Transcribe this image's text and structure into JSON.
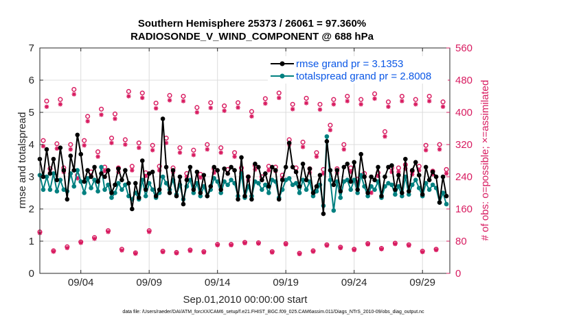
{
  "chart_data": {
    "type": "line",
    "title_line1": "Southern Hemisphere 25373 / 26061 = 97.360%",
    "title_line2": "RADIOSONDE_V_WIND_COMPONENT @ 688 hPa",
    "xlabel": "Sep.01,2010 00:00:00 start",
    "ylabel": "rmse and totalspread",
    "ylabel_right": "# of obs: o=possible; ×=assimilated",
    "footnote": "data file: /Users/raeder/DAI/ATM_forcXX/CAM6_setup/f.e21.FHIST_BGC.f09_025.CAM6assim.011/Diags_NTrS_2010-09/obs_diag_output.nc",
    "xlim": [
      1.0,
      31.0
    ],
    "ylim": [
      0,
      7
    ],
    "ylim_right": [
      0,
      560
    ],
    "x_ticks": [
      4,
      9,
      14,
      19,
      24,
      29
    ],
    "x_tick_labels": [
      "09/04",
      "09/09",
      "09/14",
      "09/19",
      "09/24",
      "09/29"
    ],
    "y_ticks": [
      0,
      1,
      2,
      3,
      4,
      5,
      6,
      7
    ],
    "y_tick_labels": [
      "0",
      "1",
      "2",
      "3",
      "4",
      "5",
      "6",
      "7"
    ],
    "y2_ticks": [
      0,
      80,
      160,
      240,
      320,
      400,
      480,
      560
    ],
    "y2_tick_labels": [
      "0",
      "80",
      "160",
      "240",
      "320",
      "400",
      "480",
      "560"
    ],
    "legend": {
      "placement": "top-right",
      "entries": [
        "rmse grand pr = 3.1353",
        "totalspread grand pr = 2.8008"
      ]
    },
    "colors": {
      "rmse": "#000000",
      "spread": "#008080",
      "obs": "#d81b60",
      "legend_text": "#0a57e6"
    },
    "series": [
      {
        "name": "rmse",
        "x": [
          1.0,
          1.25,
          1.5,
          1.75,
          2.0,
          2.25,
          2.5,
          2.75,
          3.0,
          3.25,
          3.5,
          3.75,
          4.0,
          4.25,
          4.5,
          4.75,
          5.0,
          5.25,
          5.5,
          5.75,
          6.0,
          6.25,
          6.5,
          6.75,
          7.0,
          7.25,
          7.5,
          7.75,
          8.0,
          8.25,
          8.5,
          8.75,
          9.0,
          9.25,
          9.5,
          9.75,
          10.0,
          10.25,
          10.5,
          10.75,
          11.0,
          11.25,
          11.5,
          11.75,
          12.0,
          12.25,
          12.5,
          12.75,
          13.0,
          13.25,
          13.5,
          13.75,
          14.0,
          14.25,
          14.5,
          14.75,
          15.0,
          15.25,
          15.5,
          15.75,
          16.0,
          16.25,
          16.5,
          16.75,
          17.0,
          17.25,
          17.5,
          17.75,
          18.0,
          18.25,
          18.5,
          18.75,
          19.0,
          19.25,
          19.5,
          19.75,
          20.0,
          20.25,
          20.5,
          20.75,
          21.0,
          21.25,
          21.5,
          21.75,
          22.0,
          22.25,
          22.5,
          22.75,
          23.0,
          23.25,
          23.5,
          23.75,
          24.0,
          24.25,
          24.5,
          24.75,
          25.0,
          25.25,
          25.5,
          25.75,
          26.0,
          26.25,
          26.5,
          26.75,
          27.0,
          27.25,
          27.5,
          27.75,
          28.0,
          28.25,
          28.5,
          28.75,
          29.0,
          29.25,
          29.5,
          29.75,
          30.0,
          30.25,
          30.5,
          30.75
        ],
        "values": [
          3.55,
          3.0,
          3.85,
          3.1,
          3.55,
          2.9,
          3.9,
          3.2,
          2.3,
          3.65,
          3.2,
          4.3,
          3.7,
          2.85,
          3.2,
          3.0,
          3.3,
          2.85,
          3.1,
          3.0,
          3.2,
          2.5,
          2.75,
          3.25,
          2.9,
          3.2,
          2.8,
          2.0,
          2.8,
          2.35,
          3.5,
          2.6,
          3.1,
          3.15,
          2.4,
          2.6,
          4.8,
          3.3,
          2.5,
          3.2,
          2.4,
          3.0,
          2.15,
          2.9,
          3.3,
          2.6,
          3.15,
          2.5,
          3.05,
          2.4,
          2.7,
          3.3,
          3.2,
          2.6,
          3.25,
          3.1,
          3.3,
          3.2,
          2.3,
          3.6,
          2.4,
          3.0,
          2.3,
          3.4,
          3.3,
          2.9,
          3.1,
          2.7,
          3.3,
          3.2,
          2.3,
          2.9,
          3.3,
          4.05,
          3.3,
          3.15,
          2.7,
          3.4,
          2.9,
          3.25,
          2.5,
          2.7,
          3.05,
          1.85,
          4.1,
          3.2,
          2.75,
          3.2,
          2.55,
          3.3,
          3.4,
          2.85,
          3.45,
          2.6,
          3.7,
          3.0,
          2.5,
          3.0,
          2.9,
          3.3,
          2.4,
          3.0,
          3.3,
          3.35,
          2.6,
          3.05,
          2.5,
          3.55,
          2.55,
          3.2,
          3.45,
          3.05,
          2.45,
          3.3,
          2.9,
          3.15,
          3.0,
          2.2,
          3.0,
          2.4
        ]
      },
      {
        "name": "totalspread",
        "x": [
          1.0,
          1.25,
          1.5,
          1.75,
          2.0,
          2.25,
          2.5,
          2.75,
          3.0,
          3.25,
          3.5,
          3.75,
          4.0,
          4.25,
          4.5,
          4.75,
          5.0,
          5.25,
          5.5,
          5.75,
          6.0,
          6.25,
          6.5,
          6.75,
          7.0,
          7.25,
          7.5,
          7.75,
          8.0,
          8.25,
          8.5,
          8.75,
          9.0,
          9.25,
          9.5,
          9.75,
          10.0,
          10.25,
          10.5,
          10.75,
          11.0,
          11.25,
          11.5,
          11.75,
          12.0,
          12.25,
          12.5,
          12.75,
          13.0,
          13.25,
          13.5,
          13.75,
          14.0,
          14.25,
          14.5,
          14.75,
          15.0,
          15.25,
          15.5,
          15.75,
          16.0,
          16.25,
          16.5,
          16.75,
          17.0,
          17.25,
          17.5,
          17.75,
          18.0,
          18.25,
          18.5,
          18.75,
          19.0,
          19.25,
          19.5,
          19.75,
          20.0,
          20.25,
          20.5,
          20.75,
          21.0,
          21.25,
          21.5,
          21.75,
          22.0,
          22.25,
          22.5,
          22.75,
          23.0,
          23.25,
          23.5,
          23.75,
          24.0,
          24.25,
          24.5,
          24.75,
          25.0,
          25.25,
          25.5,
          25.75,
          26.0,
          26.25,
          26.5,
          26.75,
          27.0,
          27.25,
          27.5,
          27.75,
          28.0,
          28.25,
          28.5,
          28.75,
          29.0,
          29.25,
          29.5,
          29.75,
          30.0,
          30.25,
          30.5,
          30.75
        ],
        "values": [
          3.05,
          2.6,
          3.0,
          2.6,
          3.1,
          2.55,
          2.9,
          2.6,
          2.55,
          3.1,
          2.7,
          3.2,
          2.85,
          2.5,
          2.95,
          2.65,
          2.9,
          2.55,
          3.3,
          2.6,
          2.75,
          2.35,
          2.5,
          2.8,
          2.6,
          2.75,
          2.4,
          2.3,
          2.5,
          2.3,
          2.9,
          2.4,
          2.8,
          2.6,
          2.35,
          2.5,
          3.0,
          2.8,
          2.6,
          2.9,
          2.45,
          2.75,
          2.3,
          2.7,
          2.9,
          2.5,
          2.8,
          2.4,
          2.7,
          2.4,
          2.6,
          2.95,
          2.85,
          2.5,
          2.85,
          2.75,
          2.9,
          2.8,
          2.4,
          3.1,
          2.35,
          2.7,
          2.4,
          2.85,
          2.8,
          2.6,
          2.75,
          2.5,
          2.9,
          2.85,
          2.35,
          2.6,
          2.9,
          2.95,
          2.75,
          2.8,
          2.5,
          2.9,
          2.6,
          2.85,
          2.4,
          2.55,
          2.75,
          2.1,
          4.25,
          2.9,
          1.95,
          2.85,
          2.35,
          2.85,
          2.9,
          2.6,
          2.9,
          2.5,
          3.05,
          2.7,
          2.4,
          2.7,
          2.6,
          2.85,
          2.35,
          2.7,
          2.8,
          2.75,
          2.45,
          2.7,
          2.4,
          3.0,
          2.45,
          2.75,
          2.9,
          2.65,
          2.4,
          2.8,
          2.6,
          2.75,
          2.65,
          2.2,
          2.5,
          2.15
        ]
      },
      {
        "name": "obs possible",
        "marker": "o",
        "axis": "right",
        "x": [
          1.0,
          1.5,
          2.0,
          2.5,
          3.0,
          3.5,
          4.0,
          4.5,
          5.0,
          5.5,
          6.0,
          6.5,
          7.0,
          7.5,
          8.0,
          8.5,
          9.0,
          9.5,
          10.0,
          10.5,
          11.0,
          11.5,
          12.0,
          12.5,
          13.0,
          13.5,
          14.0,
          14.5,
          15.0,
          15.5,
          16.0,
          16.5,
          17.0,
          17.5,
          18.0,
          18.5,
          19.0,
          19.5,
          20.0,
          20.5,
          21.0,
          21.5,
          22.0,
          22.5,
          23.0,
          23.5,
          24.0,
          24.5,
          25.0,
          25.5,
          26.0,
          26.5,
          27.0,
          27.5,
          28.0,
          28.5,
          29.0,
          29.5,
          30.0,
          30.5
        ],
        "values": [
          103,
          428,
          56,
          432,
          66,
          457,
          78,
          390,
          89,
          408,
          106,
          396,
          60,
          452,
          51,
          448,
          106,
          423,
          55,
          442,
          52,
          440,
          58,
          412,
          54,
          424,
          72,
          416,
          72,
          424,
          77,
          402,
          76,
          434,
          54,
          448,
          74,
          420,
          50,
          435,
          56,
          420,
          71,
          432,
          65,
          440,
          60,
          432,
          74,
          446,
          62,
          426,
          75,
          440,
          71,
          432,
          55,
          440,
          60,
          426
        ]
      },
      {
        "name": "obs assimilated",
        "marker": "*",
        "axis": "right",
        "x": [
          1.0,
          1.5,
          2.0,
          2.5,
          3.0,
          3.5,
          4.0,
          4.5,
          5.0,
          5.5,
          6.0,
          6.5,
          7.0,
          7.5,
          8.0,
          8.5,
          9.0,
          9.5,
          10.0,
          10.5,
          11.0,
          11.5,
          12.0,
          12.5,
          13.0,
          13.5,
          14.0,
          14.5,
          15.0,
          15.5,
          16.0,
          16.5,
          17.0,
          17.5,
          18.0,
          18.5,
          19.0,
          19.5,
          20.0,
          20.5,
          21.0,
          21.5,
          22.0,
          22.5,
          23.0,
          23.5,
          24.0,
          24.5,
          25.0,
          25.5,
          26.0,
          26.5,
          27.0,
          27.5,
          28.0,
          28.5,
          29.0,
          29.5,
          30.0,
          30.5
        ],
        "values": [
          100,
          414,
          54,
          420,
          63,
          445,
          76,
          378,
          86,
          394,
          103,
          384,
          57,
          440,
          49,
          436,
          103,
          410,
          53,
          430,
          50,
          428,
          56,
          400,
          52,
          411,
          70,
          404,
          70,
          412,
          75,
          390,
          74,
          422,
          52,
          436,
          72,
          408,
          48,
          423,
          54,
          407,
          69,
          420,
          63,
          428,
          58,
          420,
          72,
          434,
          60,
          414,
          73,
          428,
          69,
          420,
          53,
          428,
          58,
          414
        ]
      },
      {
        "name": "obs possible (lower cluster)",
        "marker": "o",
        "axis": "right",
        "x": [
          1.25,
          1.75,
          2.25,
          2.75,
          3.25,
          3.75,
          4.25,
          4.75,
          5.25,
          5.75,
          6.25,
          6.75,
          7.25,
          7.75,
          8.25,
          8.75,
          9.25,
          9.75,
          10.25,
          10.75,
          11.25,
          11.75,
          12.25,
          12.75,
          13.25,
          13.75,
          14.25,
          14.75,
          15.25,
          15.75,
          16.25,
          16.75,
          17.25,
          17.75,
          18.25,
          18.75,
          19.25,
          19.75,
          20.25,
          20.75,
          21.25,
          21.75,
          22.25,
          22.75,
          23.25,
          23.75,
          24.25,
          24.75,
          25.25,
          25.75,
          26.25,
          26.75,
          27.25,
          27.75,
          28.25,
          28.75,
          29.25,
          29.75,
          30.25,
          30.75
        ],
        "values": [
          330,
          260,
          322,
          262,
          320,
          244,
          330,
          252,
          302,
          264,
          336,
          262,
          332,
          266,
          324,
          250,
          318,
          266,
          336,
          262,
          312,
          248,
          306,
          246,
          320,
          260,
          312,
          258,
          300,
          262,
          240,
          268,
          240,
          266,
          264,
          244,
          332,
          262,
          326,
          260,
          300,
          258,
          368,
          260,
          320,
          262,
          234,
          248,
          208,
          250,
          352,
          262,
          262,
          270,
          254,
          266,
          318,
          254,
          320,
          258
        ]
      },
      {
        "name": "obs assimilated (lower cluster)",
        "marker": "*",
        "axis": "right",
        "x": [
          1.25,
          1.75,
          2.25,
          2.75,
          3.25,
          3.75,
          4.25,
          4.75,
          5.25,
          5.75,
          6.25,
          6.75,
          7.25,
          7.75,
          8.25,
          8.75,
          9.25,
          9.75,
          10.25,
          10.75,
          11.25,
          11.75,
          12.25,
          12.75,
          13.25,
          13.75,
          14.25,
          14.75,
          15.25,
          15.75,
          16.25,
          16.75,
          17.25,
          17.75,
          18.25,
          18.75,
          19.25,
          19.75,
          20.25,
          20.75,
          21.25,
          21.75,
          22.25,
          22.75,
          23.25,
          23.75,
          24.25,
          24.75,
          25.25,
          25.75,
          26.25,
          26.75,
          27.25,
          27.75,
          28.25,
          28.75,
          29.25,
          29.75,
          30.25,
          30.75
        ],
        "values": [
          316,
          250,
          310,
          252,
          308,
          236,
          318,
          242,
          290,
          254,
          324,
          252,
          320,
          256,
          312,
          242,
          306,
          256,
          324,
          252,
          300,
          240,
          294,
          238,
          308,
          250,
          300,
          248,
          290,
          252,
          232,
          258,
          232,
          256,
          254,
          236,
          320,
          252,
          314,
          250,
          290,
          248,
          356,
          250,
          308,
          252,
          226,
          240,
          200,
          242,
          340,
          252,
          252,
          260,
          246,
          256,
          306,
          246,
          308,
          248
        ]
      }
    ]
  }
}
